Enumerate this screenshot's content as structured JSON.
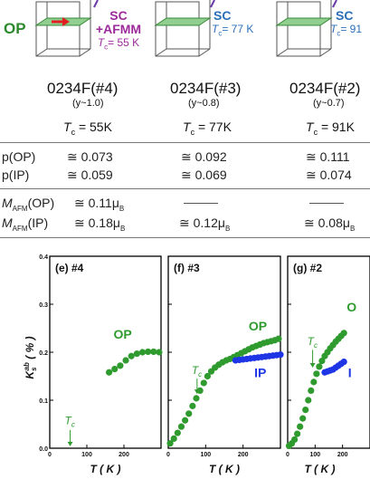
{
  "header": {
    "op_label": "OP",
    "boxes": [
      {
        "line1": "SC",
        "line2": "+AFMM",
        "tc_symbol": "T",
        "tc_sub": "c",
        "tc_value": "= 55 K",
        "color": "#9b2a9b"
      },
      {
        "line1": "SC",
        "tc_symbol": "T",
        "tc_sub": "c",
        "tc_value": "= 77 K",
        "color": "#2a6fb8"
      },
      {
        "line1": "SC",
        "tc_symbol": "T",
        "tc_sub": "c",
        "tc_value": "= 91",
        "color": "#2a6fb8"
      }
    ]
  },
  "samples": [
    {
      "name": "0234F(#4)",
      "y": "(y~1.0)",
      "tc": "= 55K",
      "p_op": "≅ 0.073",
      "p_ip": "≅ 0.059",
      "m_op": "≅ 0.11μ",
      "m_ip": "≅ 0.18μ"
    },
    {
      "name": "0234F(#3)",
      "y": "(y~0.8)",
      "tc": "= 77K",
      "p_op": "≅ 0.092",
      "p_ip": "≅ 0.069",
      "m_op": "",
      "m_ip": "≅ 0.12μ"
    },
    {
      "name": "0234F(#2)",
      "y": "(y~0.7)",
      "tc": "= 91K",
      "p_op": "≅ 0.111",
      "p_ip": "≅ 0.074",
      "m_op": "",
      "m_ip": "≅ 0.08μ"
    }
  ],
  "table": {
    "tc_symbol": "T",
    "tc_sub": "c",
    "p_op_label": "p(OP)",
    "p_ip_label": "p(IP)",
    "m_symbol": "M",
    "m_sub": "AFM",
    "m_op_label": "(OP)",
    "m_ip_label": "(IP)",
    "mu_sub": "B"
  },
  "colors": {
    "op": "#2f9b2f",
    "ip": "#1e35e6",
    "purple": "#9b2a9b",
    "blue": "#2a6fb8"
  },
  "chart_data": [
    {
      "type": "scatter",
      "title": "(e) #4",
      "xlabel": "T ( K )",
      "ylabel": "K_s^ab ( % )",
      "xlim": [
        0,
        300
      ],
      "ylim": [
        0,
        0.4
      ],
      "xticks": [
        "0",
        "100",
        "200"
      ],
      "yticks": [
        "0.0",
        "0.1",
        "0.2",
        "0.3",
        "0.4"
      ],
      "tc_label": "T_c",
      "tc_x": 55,
      "series": [
        {
          "name": "OP",
          "x": [
            160,
            175,
            190,
            205,
            220,
            235,
            250,
            265,
            280,
            295
          ],
          "y": [
            0.158,
            0.165,
            0.172,
            0.183,
            0.192,
            0.197,
            0.2,
            0.201,
            0.201,
            0.2
          ]
        }
      ]
    },
    {
      "type": "scatter",
      "title": "(f) #3",
      "xlabel": "T ( K )",
      "xlim": [
        0,
        300
      ],
      "ylim": [
        0,
        0.4
      ],
      "xticks": [
        "0",
        "100",
        "200"
      ],
      "tc_label": "T_c",
      "tc_x": 77,
      "series": [
        {
          "name": "OP",
          "x": [
            5,
            15,
            25,
            35,
            45,
            55,
            65,
            75,
            85,
            95,
            105,
            115,
            125,
            135,
            145,
            155,
            165,
            175,
            185,
            195,
            205,
            215,
            225,
            235,
            245,
            255,
            265,
            275,
            285,
            295
          ],
          "y": [
            0.01,
            0.02,
            0.032,
            0.045,
            0.058,
            0.072,
            0.088,
            0.104,
            0.12,
            0.136,
            0.15,
            0.16,
            0.168,
            0.174,
            0.179,
            0.183,
            0.186,
            0.19,
            0.194,
            0.198,
            0.202,
            0.206,
            0.21,
            0.213,
            0.216,
            0.219,
            0.221,
            0.223,
            0.225,
            0.228
          ]
        },
        {
          "name": "IP",
          "x": [
            180,
            190,
            200,
            210,
            220,
            230,
            240,
            250,
            260,
            270,
            280,
            290,
            300
          ],
          "y": [
            0.183,
            0.184,
            0.185,
            0.186,
            0.187,
            0.188,
            0.189,
            0.19,
            0.191,
            0.192,
            0.193,
            0.194,
            0.195
          ]
        }
      ]
    },
    {
      "type": "scatter",
      "title": "(g) #2",
      "xlabel": "T ( K )",
      "xlim": [
        0,
        300
      ],
      "ylim": [
        0,
        0.4
      ],
      "xticks": [
        "0",
        "100",
        "200"
      ],
      "tc_label": "T_c",
      "tc_x": 91,
      "series_labels": [
        "O",
        "I"
      ],
      "series": [
        {
          "name": "OP",
          "x": [
            5,
            15,
            25,
            35,
            45,
            55,
            65,
            75,
            85,
            95,
            105,
            115,
            125,
            135,
            145,
            155,
            165,
            175,
            185,
            195,
            205
          ],
          "y": [
            0.005,
            0.01,
            0.018,
            0.03,
            0.045,
            0.062,
            0.08,
            0.1,
            0.12,
            0.138,
            0.155,
            0.17,
            0.182,
            0.192,
            0.2,
            0.208,
            0.215,
            0.222,
            0.228,
            0.234,
            0.24
          ]
        },
        {
          "name": "IP",
          "x": [
            135,
            145,
            155,
            165,
            175,
            185,
            195,
            205
          ],
          "y": [
            0.158,
            0.16,
            0.162,
            0.164,
            0.168,
            0.172,
            0.176,
            0.18
          ]
        }
      ]
    }
  ]
}
